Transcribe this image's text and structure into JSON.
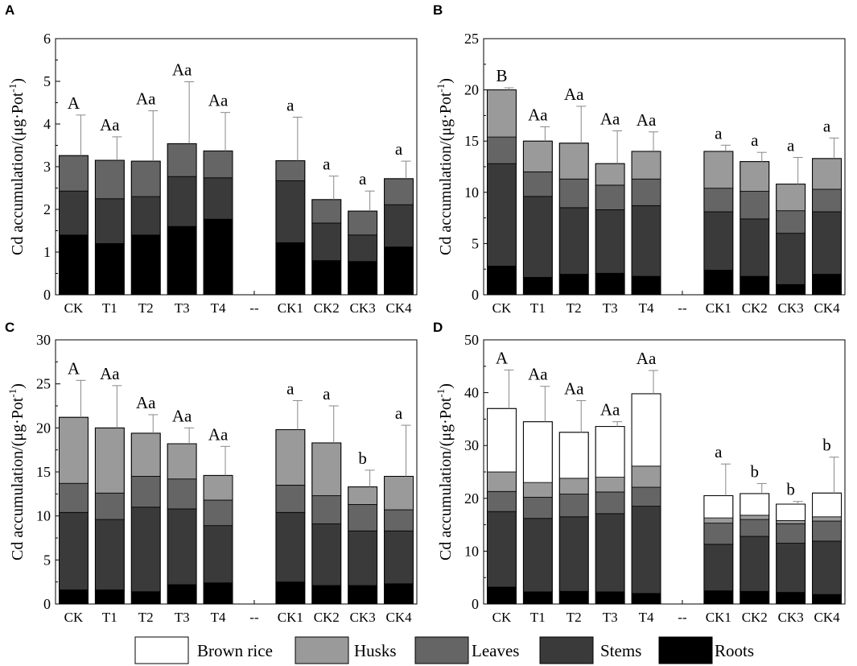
{
  "figure": {
    "legend": [
      {
        "name": "Brown rice",
        "color": "#ffffff"
      },
      {
        "name": "Husks",
        "color": "#9a9a9a"
      },
      {
        "name": "Leaves",
        "color": "#656565"
      },
      {
        "name": "Stems",
        "color": "#3a3a3a"
      },
      {
        "name": "Roots",
        "color": "#000000"
      }
    ]
  },
  "chart_data": [
    {
      "type": "bar",
      "stacked": true,
      "panel": "A",
      "ylabel": "Cd accumulation/(μg·Pot-1)",
      "ylim": [
        0,
        6
      ],
      "yticks": [
        0,
        1,
        2,
        3,
        4,
        5,
        6
      ],
      "categories": [
        "CK",
        "T1",
        "T2",
        "T3",
        "T4",
        "--",
        "CK1",
        "CK2",
        "CK3",
        "CK4"
      ],
      "series": [
        {
          "name": "Roots",
          "values": [
            1.4,
            1.2,
            1.4,
            1.6,
            1.77,
            null,
            1.22,
            0.8,
            0.78,
            1.12
          ]
        },
        {
          "name": "Stems",
          "values": [
            1.03,
            1.05,
            0.9,
            1.17,
            0.97,
            null,
            1.45,
            0.88,
            0.62,
            0.99
          ]
        },
        {
          "name": "Leaves",
          "values": [
            0.83,
            0.9,
            0.83,
            0.77,
            0.63,
            null,
            0.47,
            0.55,
            0.56,
            0.61
          ]
        },
        {
          "name": "Husks",
          "values": [
            0,
            0,
            0,
            0,
            0,
            null,
            0,
            0,
            0,
            0
          ]
        },
        {
          "name": "Brown rice",
          "values": [
            0,
            0,
            0,
            0,
            0,
            null,
            0,
            0,
            0,
            0
          ]
        }
      ],
      "totals": [
        3.26,
        3.15,
        3.13,
        3.54,
        3.37,
        null,
        3.14,
        2.23,
        1.96,
        2.72
      ],
      "errors": [
        0.95,
        0.55,
        1.18,
        1.45,
        0.9,
        null,
        1.02,
        0.55,
        0.47,
        0.41
      ],
      "significance": [
        "A",
        "Aa",
        "Aa",
        "Aa",
        "Aa",
        "",
        "a",
        "a",
        "a",
        "a"
      ]
    },
    {
      "type": "bar",
      "stacked": true,
      "panel": "B",
      "ylabel": "Cd accumulation/(μg·Pot-1)",
      "ylim": [
        0,
        25
      ],
      "yticks": [
        0,
        5,
        10,
        15,
        20,
        25
      ],
      "categories": [
        "CK",
        "T1",
        "T2",
        "T3",
        "T4",
        "--",
        "CK1",
        "CK2",
        "CK3",
        "CK4"
      ],
      "series": [
        {
          "name": "Roots",
          "values": [
            2.8,
            1.7,
            2.0,
            2.1,
            1.8,
            null,
            2.4,
            1.8,
            1.0,
            2.0
          ]
        },
        {
          "name": "Stems",
          "values": [
            10.0,
            7.9,
            6.5,
            6.2,
            6.9,
            null,
            5.7,
            5.6,
            5.0,
            6.1
          ]
        },
        {
          "name": "Leaves",
          "values": [
            2.6,
            2.4,
            2.8,
            2.4,
            2.6,
            null,
            2.3,
            2.7,
            2.2,
            2.2
          ]
        },
        {
          "name": "Husks",
          "values": [
            4.6,
            3.0,
            3.5,
            2.1,
            2.7,
            null,
            3.6,
            2.9,
            2.6,
            3.0
          ]
        },
        {
          "name": "Brown rice",
          "values": [
            0,
            0,
            0,
            0,
            0,
            null,
            0,
            0,
            0,
            0
          ]
        }
      ],
      "totals": [
        20.0,
        15.0,
        14.8,
        12.8,
        14.0,
        null,
        14.0,
        13.0,
        10.8,
        13.3
      ],
      "errors": [
        0.2,
        1.4,
        3.6,
        3.2,
        1.9,
        null,
        0.6,
        0.9,
        2.6,
        2.0
      ],
      "significance": [
        "B",
        "Aa",
        "Aa",
        "Aa",
        "Aa",
        "",
        "a",
        "a",
        "a",
        "a"
      ]
    },
    {
      "type": "bar",
      "stacked": true,
      "panel": "C",
      "ylabel": "Cd accumulation/(μg·Pot-1)",
      "ylim": [
        0,
        30
      ],
      "yticks": [
        0,
        5,
        10,
        15,
        20,
        25,
        30
      ],
      "categories": [
        "CK",
        "T1",
        "T2",
        "T3",
        "T4",
        "--",
        "CK1",
        "CK2",
        "CK3",
        "CK4"
      ],
      "series": [
        {
          "name": "Roots",
          "values": [
            1.6,
            1.6,
            1.4,
            2.2,
            2.4,
            null,
            2.5,
            2.1,
            2.1,
            2.3
          ]
        },
        {
          "name": "Stems",
          "values": [
            8.8,
            8.0,
            9.6,
            8.6,
            6.5,
            null,
            7.9,
            7.0,
            6.2,
            6.0
          ]
        },
        {
          "name": "Leaves",
          "values": [
            3.3,
            3.0,
            3.5,
            3.4,
            2.9,
            null,
            3.1,
            3.2,
            3.0,
            2.4
          ]
        },
        {
          "name": "Husks",
          "values": [
            7.5,
            7.4,
            4.9,
            4.0,
            2.8,
            null,
            6.3,
            6.0,
            2.0,
            3.8
          ]
        },
        {
          "name": "Brown rice",
          "values": [
            0,
            0,
            0,
            0,
            0,
            null,
            0,
            0,
            0,
            0
          ]
        }
      ],
      "totals": [
        21.2,
        20.0,
        19.4,
        18.2,
        14.6,
        null,
        19.8,
        18.3,
        13.3,
        14.5
      ],
      "errors": [
        4.2,
        4.8,
        2.1,
        1.8,
        3.3,
        null,
        3.3,
        4.2,
        1.9,
        5.8
      ],
      "significance": [
        "A",
        "Aa",
        "Aa",
        "Aa",
        "Aa",
        "",
        "a",
        "a",
        "b",
        "a"
      ]
    },
    {
      "type": "bar",
      "stacked": true,
      "panel": "D",
      "ylabel": "Cd accumulation/(μg·Pot-1)",
      "ylim": [
        0,
        50
      ],
      "yticks": [
        0,
        10,
        20,
        30,
        40,
        50
      ],
      "categories": [
        "CK",
        "T1",
        "T2",
        "T3",
        "T4",
        "--",
        "CK1",
        "CK2",
        "CK3",
        "CK4"
      ],
      "series": [
        {
          "name": "Roots",
          "values": [
            3.2,
            2.3,
            2.4,
            2.3,
            2.0,
            null,
            2.5,
            2.4,
            2.2,
            1.8
          ]
        },
        {
          "name": "Stems",
          "values": [
            14.3,
            13.9,
            14.1,
            14.8,
            16.5,
            null,
            8.8,
            10.4,
            9.3,
            10.1
          ]
        },
        {
          "name": "Leaves",
          "values": [
            3.8,
            4.0,
            4.3,
            4.1,
            3.6,
            null,
            4.0,
            3.2,
            3.7,
            3.8
          ]
        },
        {
          "name": "Husks",
          "values": [
            3.7,
            2.8,
            3.0,
            2.8,
            4.0,
            null,
            1.0,
            0.8,
            0.6,
            0.8
          ]
        },
        {
          "name": "Brown rice",
          "values": [
            12.0,
            11.5,
            8.7,
            9.6,
            13.7,
            null,
            4.2,
            4.1,
            3.1,
            4.5
          ]
        }
      ],
      "totals": [
        37.0,
        34.5,
        32.5,
        33.6,
        39.8,
        null,
        20.5,
        20.9,
        18.9,
        21.0
      ],
      "errors": [
        7.3,
        6.7,
        6.0,
        0.9,
        4.4,
        null,
        6.0,
        1.9,
        0.5,
        6.8
      ],
      "significance": [
        "A",
        "Aa",
        "Aa",
        "Aa",
        "Aa",
        "",
        "a",
        "b",
        "b",
        "b"
      ]
    }
  ]
}
